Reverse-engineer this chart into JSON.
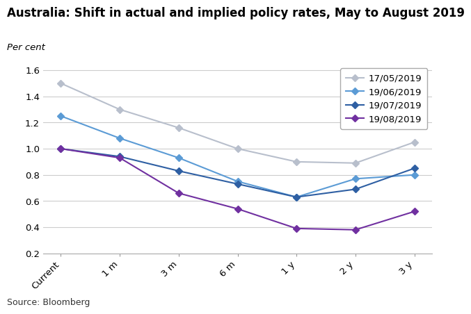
{
  "title": "Australia: Shift in actual and implied policy rates, May to August 2019",
  "ylabel": "Per cent",
  "source": "Source: Bloomberg",
  "x_labels": [
    "Current",
    "1 m",
    "3 m",
    "6 m",
    "1 y",
    "2 y",
    "3 y"
  ],
  "series": [
    {
      "label": "17/05/2019",
      "color": "#b8bfcc",
      "marker": "D",
      "values": [
        1.5,
        1.3,
        1.16,
        1.0,
        0.9,
        0.89,
        1.05
      ]
    },
    {
      "label": "19/06/2019",
      "color": "#5b9bd5",
      "marker": "D",
      "values": [
        1.25,
        1.08,
        0.93,
        0.75,
        0.63,
        0.77,
        0.8
      ]
    },
    {
      "label": "19/07/2019",
      "color": "#2e5fa3",
      "marker": "D",
      "values": [
        1.0,
        0.94,
        0.83,
        0.73,
        0.63,
        0.69,
        0.85
      ]
    },
    {
      "label": "19/08/2019",
      "color": "#7030a0",
      "marker": "D",
      "values": [
        1.0,
        0.93,
        0.66,
        0.54,
        0.39,
        0.38,
        0.52
      ]
    }
  ],
  "ylim": [
    0.2,
    1.65
  ],
  "yticks": [
    0.2,
    0.4,
    0.6,
    0.8,
    1.0,
    1.2,
    1.4,
    1.6
  ],
  "background_color": "#ffffff",
  "grid_color": "#cccccc",
  "title_fontsize": 12,
  "label_fontsize": 9.5,
  "tick_fontsize": 9.5,
  "legend_fontsize": 9.5,
  "source_fontsize": 9
}
